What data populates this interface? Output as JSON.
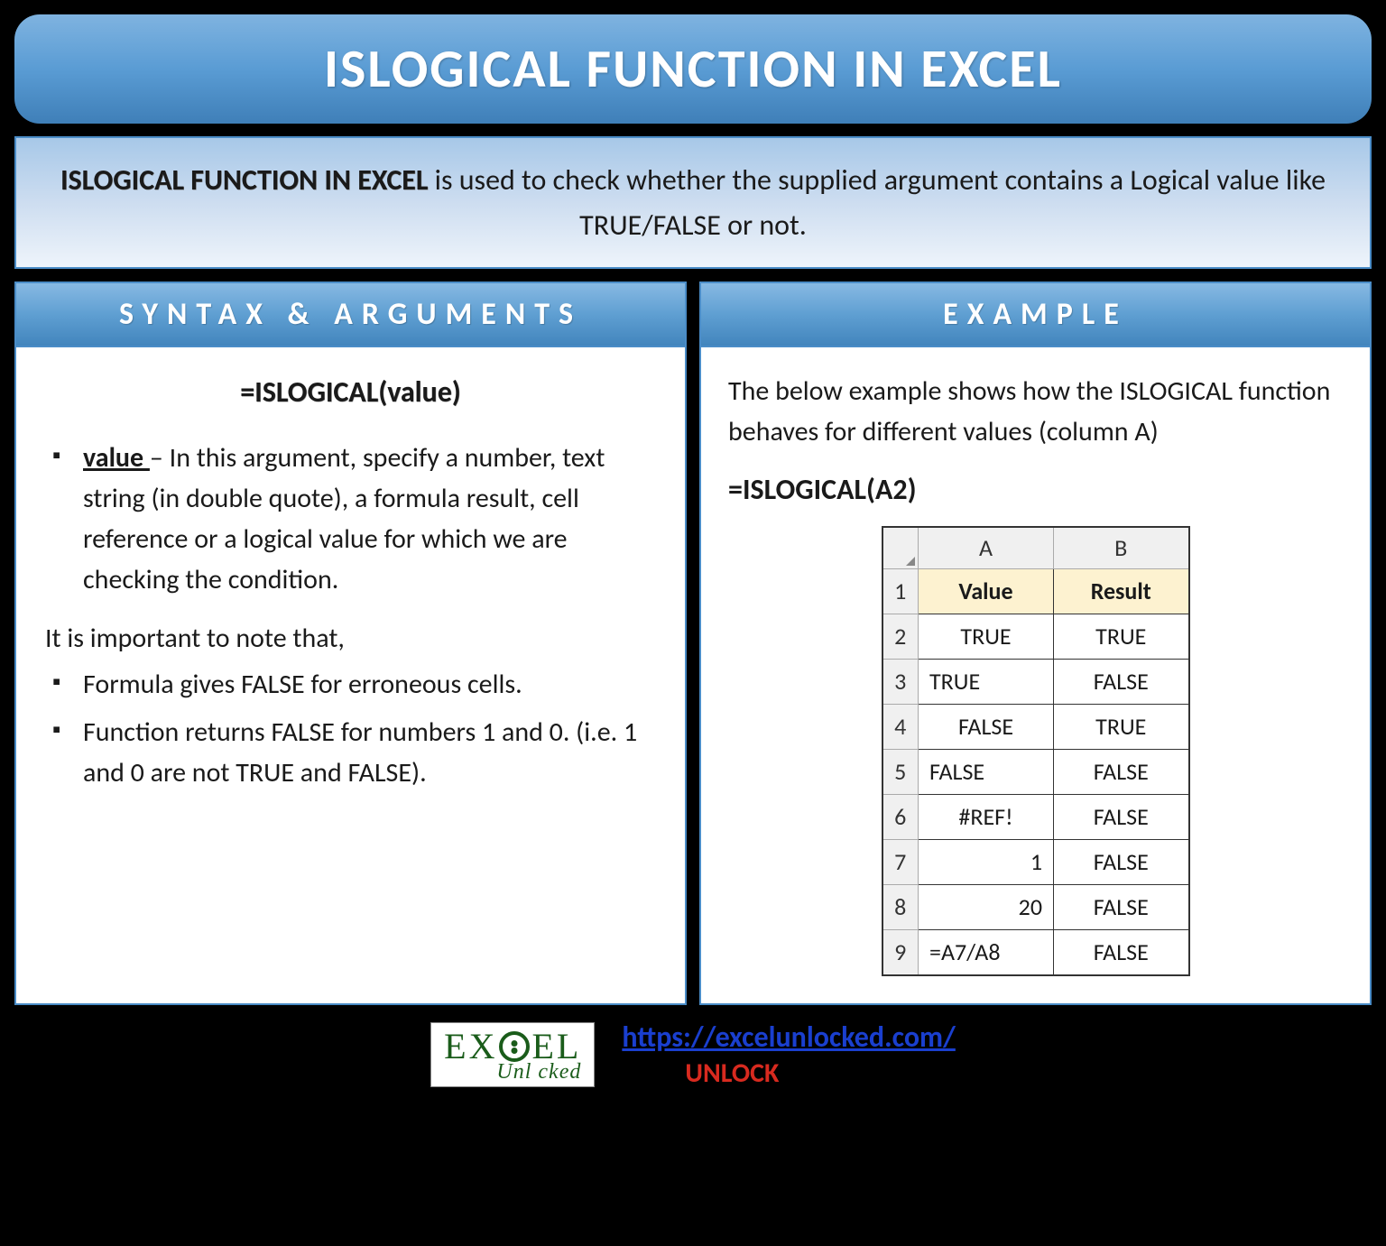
{
  "title": "ISLOGICAL FUNCTION IN EXCEL",
  "description": {
    "bold_lead": "ISLOGICAL FUNCTION IN EXCEL",
    "rest": " is used to check whether the supplied argument contains a Logical value like TRUE/FALSE or not."
  },
  "syntax_panel": {
    "header": "SYNTAX & ARGUMENTS",
    "formula": "=ISLOGICAL(value)",
    "arg_name": "value ",
    "arg_desc": "– In this argument, specify a number, text string (in double quote), a formula result, cell reference or a logical value for which we are checking the condition.",
    "note_intro": "It is important to note that,",
    "notes": [
      "Formula gives FALSE for erroneous cells.",
      "Function returns FALSE for numbers 1 and 0. (i.e. 1 and 0 are not TRUE and FALSE)."
    ]
  },
  "example_panel": {
    "header": "EXAMPLE",
    "intro": "The below example shows how the ISLOGICAL function behaves for different values (column A)",
    "formula": "=ISLOGICAL(A2)",
    "table": {
      "col_letters": [
        "A",
        "B"
      ],
      "header_row": {
        "num": "1",
        "cells": [
          "Value",
          "Result"
        ]
      },
      "rows": [
        {
          "num": "2",
          "a": "TRUE",
          "a_align": "center",
          "b": "TRUE"
        },
        {
          "num": "3",
          "a": "TRUE",
          "a_align": "left",
          "b": "FALSE"
        },
        {
          "num": "4",
          "a": "FALSE",
          "a_align": "center",
          "b": "TRUE"
        },
        {
          "num": "5",
          "a": "FALSE",
          "a_align": "left",
          "b": "FALSE"
        },
        {
          "num": "6",
          "a": "#REF!",
          "a_align": "center",
          "b": "FALSE"
        },
        {
          "num": "7",
          "a": "1",
          "a_align": "right",
          "b": "FALSE"
        },
        {
          "num": "8",
          "a": "20",
          "a_align": "right",
          "b": "FALSE"
        },
        {
          "num": "9",
          "a": "=A7/A8",
          "a_align": "left",
          "b": "FALSE"
        }
      ]
    }
  },
  "footer": {
    "logo_top_pre": "EX",
    "logo_top_post": "EL",
    "logo_bottom": "Unl   cked",
    "url": "https://excelunlocked.com/",
    "unlock": "UNLOCK"
  },
  "colors": {
    "banner_grad_top": "#7fb3e0",
    "banner_grad_bot": "#3f7fb8",
    "border_blue": "#4a8cc7",
    "desc_grad_top": "#a7c8e8",
    "desc_grad_bot": "#eef4fb",
    "link_blue": "#1a3fcf",
    "unlock_red": "#d82a1f",
    "logo_green": "#1a5c1a",
    "header_cell_bg": "#fdf2d0"
  }
}
